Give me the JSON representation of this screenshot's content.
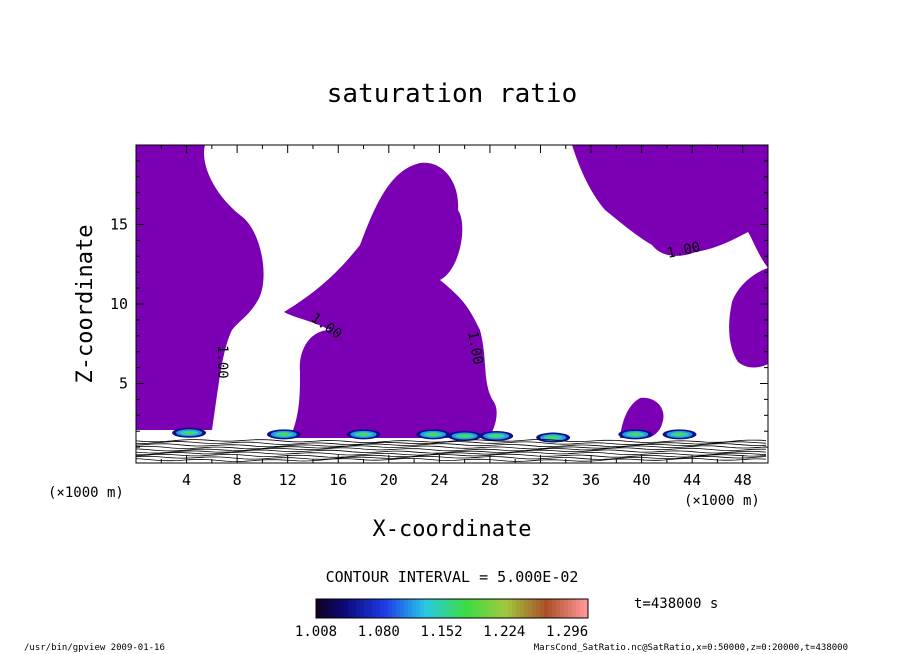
{
  "chart_data": {
    "type": "contour",
    "title": "saturation ratio",
    "xlabel": "X-coordinate",
    "ylabel": "Z-coordinate",
    "x_unit": "(×1000 m)",
    "y_unit": "(×1000 m)",
    "xlim": [
      0,
      50
    ],
    "ylim": [
      0,
      20
    ],
    "x_ticks": [
      "4",
      "8",
      "12",
      "16",
      "20",
      "24",
      "28",
      "32",
      "36",
      "40",
      "44",
      "48"
    ],
    "y_ticks": [
      "5",
      "10",
      "15"
    ],
    "contour_label": "1.00",
    "contour_interval_text": "CONTOUR INTERVAL = 5.000E-02",
    "time_text": "t=438000 s",
    "colorbar": {
      "ticks": [
        "1.008",
        "1.080",
        "1.152",
        "1.224",
        "1.296"
      ],
      "min": 1.008,
      "max": 1.32
    },
    "footer_left": "/usr/bin/gpview  2009-01-16",
    "footer_right": "MarsCond_SatRatio.nc@SatRatio,x=0:50000,z=0:20000,t=438000",
    "colors": {
      "saturated_fill": "#7b00b4",
      "contour_line": "#000000"
    },
    "supersaturated_blobs": [
      {
        "x": 4.2,
        "z": 1.9
      },
      {
        "x": 11.7,
        "z": 1.8
      },
      {
        "x": 18.0,
        "z": 1.8
      },
      {
        "x": 23.5,
        "z": 1.8
      },
      {
        "x": 26.0,
        "z": 1.7
      },
      {
        "x": 28.5,
        "z": 1.7
      },
      {
        "x": 33.0,
        "z": 1.6
      },
      {
        "x": 39.5,
        "z": 1.8
      },
      {
        "x": 43.0,
        "z": 1.8
      }
    ]
  }
}
